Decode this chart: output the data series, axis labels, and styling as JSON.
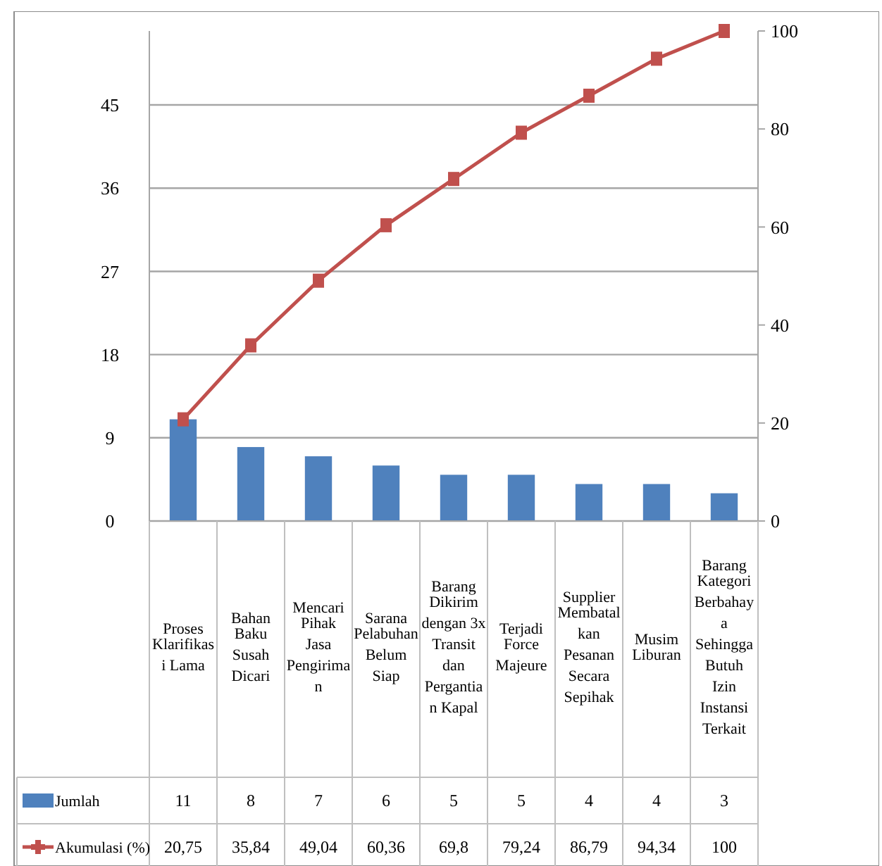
{
  "chart_data": {
    "type": "bar",
    "categories": [
      "Proses Klarifikasi Lama",
      "Bahan Baku Susah Dicari",
      "Mencari Pihak Jasa Pengiriman",
      "Sarana Pelabuhan Belum Siap",
      "Barang Dikirim dengan 3x Transit dan Pergantian Kapal",
      "Terjadi Force Majeure",
      "Supplier Membatalkan Pesanan Secara Sepihak",
      "Musim Liburan",
      "Barang Kategori Berbahaya Sehingga Butuh Izin Instansi Terkait"
    ],
    "series": [
      {
        "name": "Jumlah",
        "color": "#4f81bd",
        "values": [
          11,
          8,
          7,
          6,
          5,
          5,
          4,
          4,
          3
        ],
        "value_labels": [
          "11",
          "8",
          "7",
          "6",
          "5",
          "5",
          "4",
          "4",
          "3"
        ]
      },
      {
        "name": "Akumulasi (%)",
        "type": "line",
        "axis": "y2",
        "color": "#c0504d",
        "marker": "square",
        "values": [
          20.75,
          35.84,
          49.04,
          60.36,
          69.8,
          79.24,
          86.79,
          94.34,
          100
        ],
        "value_labels": [
          "20,75",
          "35,84",
          "49,04",
          "60,36",
          "69,8",
          "79,24",
          "86,79",
          "94,34",
          "100"
        ]
      }
    ],
    "ylim": [
      0,
      53
    ],
    "yticks": [
      0,
      9,
      18,
      27,
      36,
      45
    ],
    "y2lim": [
      0,
      100
    ],
    "y2ticks": [
      0,
      20,
      40,
      60,
      80,
      100
    ],
    "grid": "y",
    "legend": "bottom left"
  }
}
